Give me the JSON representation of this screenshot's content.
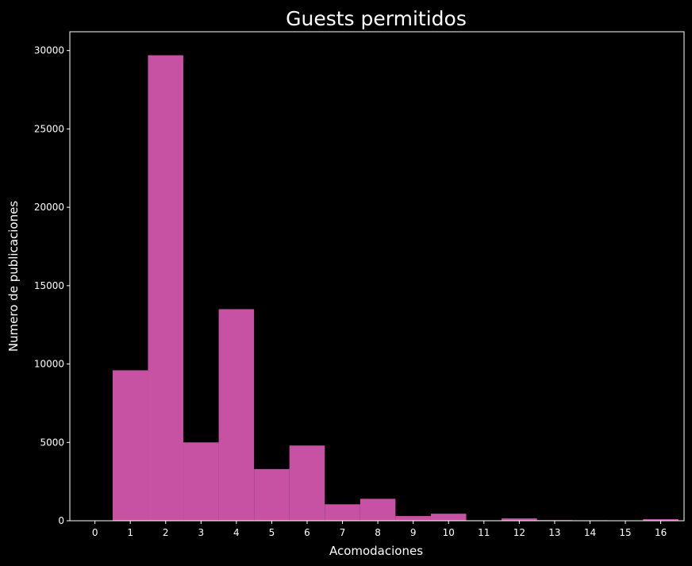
{
  "chart_data": {
    "type": "bar",
    "title": "Guests permitidos",
    "xlabel": "Acomodaciones",
    "ylabel": "Numero de publicaciones",
    "categories": [
      "0",
      "1",
      "2",
      "3",
      "4",
      "5",
      "6",
      "7",
      "8",
      "9",
      "10",
      "11",
      "12",
      "13",
      "14",
      "15",
      "16"
    ],
    "values": [
      0,
      9600,
      29700,
      5000,
      13500,
      3300,
      4800,
      1050,
      1400,
      300,
      450,
      30,
      150,
      40,
      30,
      20,
      100
    ],
    "ylim": [
      0,
      31200
    ],
    "yticks": [
      0,
      5000,
      10000,
      15000,
      20000,
      25000,
      30000
    ],
    "grid": false,
    "colors": {
      "bar": "#c752a3",
      "background": "#000000",
      "foreground": "#ffffff"
    }
  }
}
